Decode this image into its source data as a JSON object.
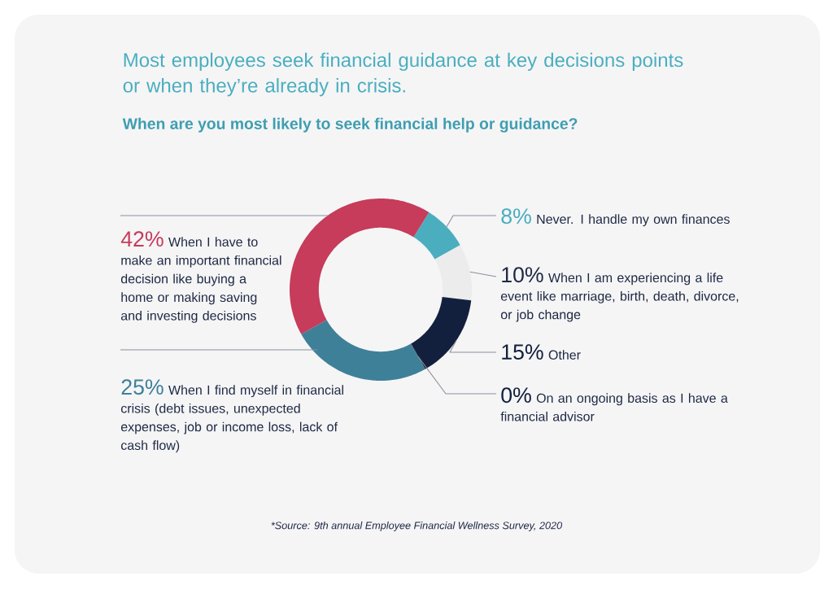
{
  "chart_data": {
    "type": "donut",
    "title": "Most employees seek financial guidance at key decisions points or when they’re already in crisis.",
    "subtitle": "When are you most likely to seek financial help or guidance?",
    "categories": [
      "Never. I handle my own finances",
      "When I am experiencing a life event like marriage, birth, death, divorce, or job change",
      "Other",
      "On an ongoing basis as I have a financial advisor",
      "When I find myself in financial crisis (debt issues, unexpected expenses, job or income loss, lack of cash flow)",
      "When I have to make an important financial decision like buying a home or making saving and investing decisions"
    ],
    "values": [
      8,
      10,
      15,
      0,
      25,
      42
    ],
    "colors": [
      "#4aaebf",
      "#ececec",
      "#13203d",
      "#13203d",
      "#3f8099",
      "#c63c5a"
    ],
    "value_labels": [
      "8%",
      "10%",
      "15%",
      "0%",
      "25%",
      "42%"
    ],
    "annotations": [
      "*Source: 9th annual Employee Financial Wellness Survey, 2020"
    ]
  }
}
